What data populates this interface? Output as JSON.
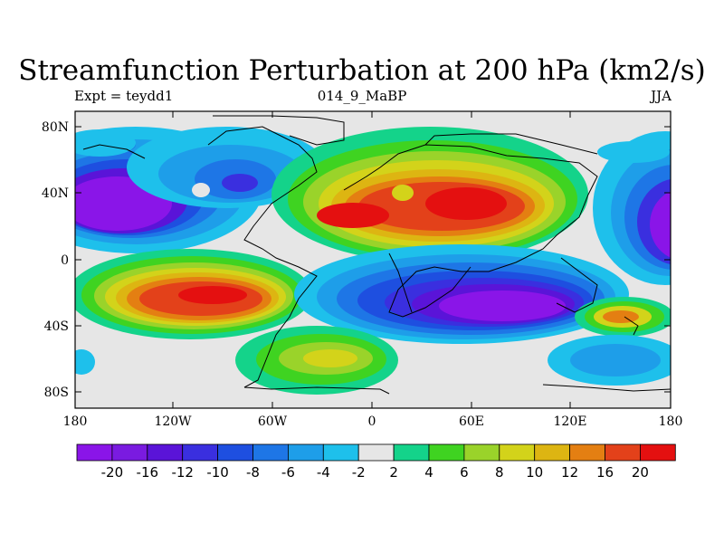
{
  "title": "Streamfunction Perturbation at 200 hPa (km2/s)",
  "subtitle_left": "Expt = teydd1",
  "subtitle_center": "014_9_MaBP",
  "subtitle_right": "JJA",
  "lat_ticks": [
    "80N",
    "40N",
    "0",
    "40S",
    "80S"
  ],
  "lon_ticks": [
    "180",
    "120W",
    "60W",
    "0",
    "60E",
    "120E",
    "180"
  ],
  "colorbar": {
    "labels": [
      "-20",
      "-16",
      "-12",
      "-10",
      "-8",
      "-6",
      "-4",
      "-2",
      "2",
      "4",
      "6",
      "8",
      "10",
      "12",
      "16",
      "20"
    ],
    "colors": [
      "#8a15e8",
      "#7a1be0",
      "#5a14d8",
      "#3a2fdf",
      "#1e4fe0",
      "#1e76e6",
      "#1e9ee9",
      "#1ec0eb",
      "#e6e6e6",
      "#14d38a",
      "#3fd321",
      "#9ad32a",
      "#d3d31a",
      "#ddb512",
      "#e47f12",
      "#e3411a",
      "#e41010"
    ]
  }
}
